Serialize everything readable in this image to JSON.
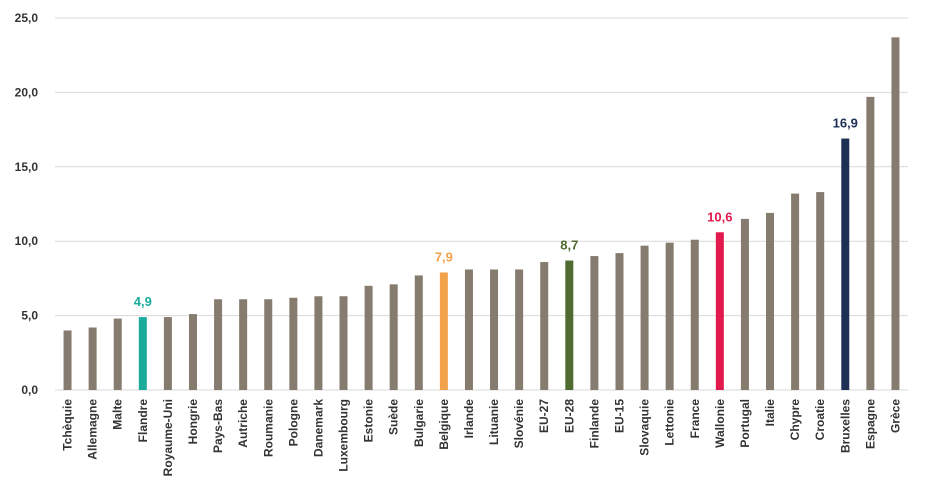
{
  "chart_data": {
    "type": "bar",
    "categories": [
      "Tchèquie",
      "Allemagne",
      "Malte",
      "Flandre",
      "Royaume-Uni",
      "Hongrie",
      "Pays-Bas",
      "Autriche",
      "Roumanie",
      "Pologne",
      "Danemark",
      "Luxembourg",
      "Estonie",
      "Suède",
      "Bulgarie",
      "Belgique",
      "Irlande",
      "Lituanie",
      "Slovénie",
      "EU-27",
      "EU-28",
      "Finlande",
      "EU-15",
      "Slovaquie",
      "Lettonie",
      "France",
      "Wallonie",
      "Portugal",
      "Italie",
      "Chypre",
      "Croatie",
      "Bruxelles",
      "Espagne",
      "Grèce"
    ],
    "values": [
      4.0,
      4.2,
      4.8,
      4.9,
      4.9,
      5.1,
      6.1,
      6.1,
      6.1,
      6.2,
      6.3,
      6.3,
      7.0,
      7.1,
      7.7,
      7.9,
      8.1,
      8.1,
      8.1,
      8.6,
      8.7,
      9.0,
      9.2,
      9.7,
      9.9,
      10.1,
      10.6,
      11.5,
      11.9,
      13.2,
      13.3,
      16.9,
      19.7,
      23.7
    ],
    "ylim": [
      0,
      25
    ],
    "yticks": [
      "0,0",
      "5,0",
      "10,0",
      "15,0",
      "20,0",
      "25,0"
    ],
    "grid": true,
    "colors": {
      "default": "#857b6e",
      "Flandre": "#1aab9b",
      "Belgique": "#f2a24b",
      "EU-28": "#4f6b2f",
      "Wallonie": "#e2194d",
      "Bruxelles": "#1e2f55"
    },
    "data_labels": [
      {
        "category": "Flandre",
        "text": "4,9"
      },
      {
        "category": "Belgique",
        "text": "7,9"
      },
      {
        "category": "EU-28",
        "text": "8,7"
      },
      {
        "category": "Wallonie",
        "text": "10,6"
      },
      {
        "category": "Bruxelles",
        "text": "16,9"
      }
    ],
    "title": "",
    "xlabel": "",
    "ylabel": ""
  }
}
